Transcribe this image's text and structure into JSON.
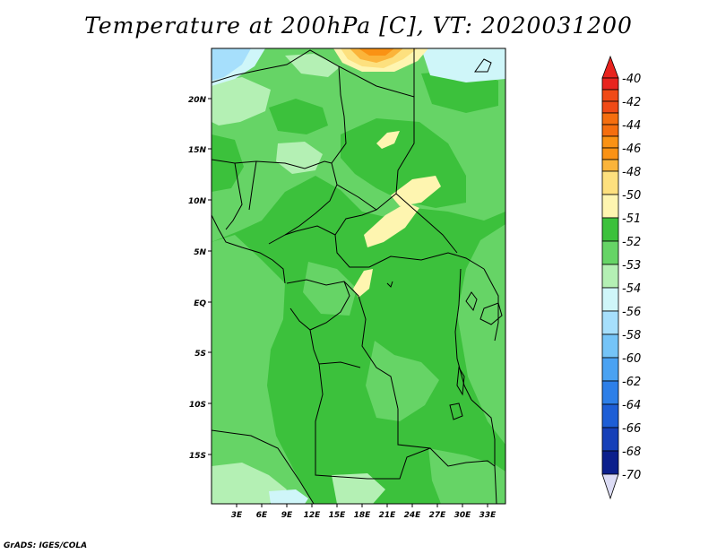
{
  "title": "Temperature at 200hPa [C], VT: 2020031200",
  "credit": "GrADS: IGES/COLA",
  "map": {
    "lat_labels": [
      "20N",
      "15N",
      "10N",
      "5N",
      "EQ",
      "5S",
      "10S",
      "15S"
    ],
    "lon_labels": [
      "3E",
      "6E",
      "9E",
      "12E",
      "15E",
      "18E",
      "21E",
      "24E",
      "27E",
      "30E",
      "33E"
    ]
  },
  "colorbar": {
    "labels": [
      "-40",
      "-42",
      "-44",
      "-46",
      "-48",
      "-50",
      "-51",
      "-52",
      "-53",
      "-54",
      "-56",
      "-58",
      "-60",
      "-62",
      "-64",
      "-66",
      "-68",
      "-70"
    ],
    "colors": [
      "#e8231e",
      "#f04a16",
      "#f56e0f",
      "#fa9214",
      "#fbb43a",
      "#fde07e",
      "#fef5b0",
      "#3cc13c",
      "#66d466",
      "#b4f0b4",
      "#cff6f9",
      "#a6dffc",
      "#75c4f7",
      "#4aa2f2",
      "#2d7fe8",
      "#1d5ed6",
      "#1640b8",
      "#0b1f8c",
      "#0a0a6e",
      "#dcdcf5"
    ]
  }
}
